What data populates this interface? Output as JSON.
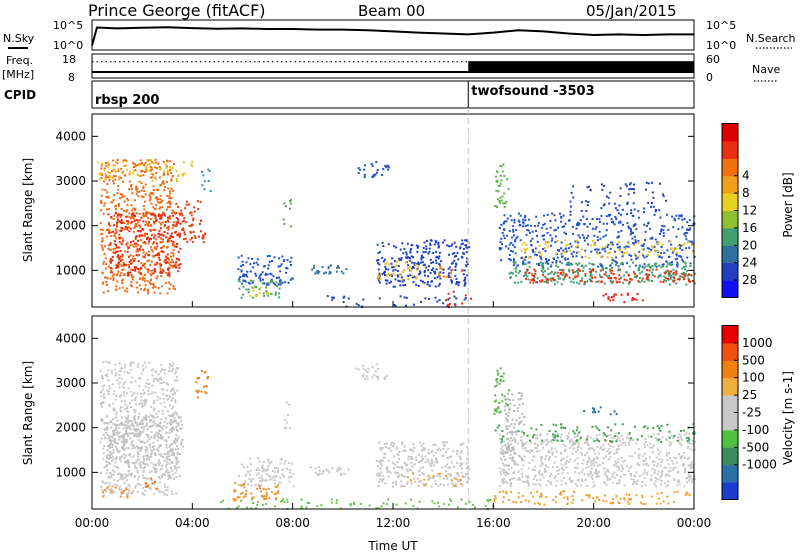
{
  "header": {
    "station": "Prince George (fitACF)",
    "beam": "Beam 00",
    "date": "05/Jan/2015"
  },
  "left_labels": {
    "nsky": "N.Sky",
    "freq": "Freq.",
    "freq_unit": "[MHz]",
    "cpid": "CPID"
  },
  "right_labels": {
    "nsearch": "N.Search",
    "nave": "Nave"
  },
  "chart_data": [
    {
      "type": "line",
      "name": "noise",
      "left_ticks": [
        "10^5",
        "10^0"
      ],
      "right_ticks": [
        "10^5",
        "10^0"
      ],
      "series": [
        {
          "name": "N.Sky",
          "x_hours": [
            0,
            0.2,
            1,
            2,
            3,
            4,
            5,
            6,
            7,
            8,
            9,
            10,
            11,
            12,
            13,
            14,
            15,
            16,
            17,
            18,
            19,
            20,
            21,
            22,
            23,
            24
          ],
          "y_frac": [
            0.15,
            0.75,
            0.72,
            0.74,
            0.76,
            0.73,
            0.71,
            0.72,
            0.7,
            0.7,
            0.68,
            0.68,
            0.66,
            0.62,
            0.58,
            0.55,
            0.52,
            0.58,
            0.66,
            0.62,
            0.55,
            0.5,
            0.52,
            0.5,
            0.52,
            0.52
          ]
        }
      ]
    },
    {
      "type": "line",
      "name": "frequency",
      "left_ticks": [
        "18",
        "8"
      ],
      "right_ticks": [
        "60",
        "0"
      ],
      "series": [
        {
          "name": "Freq.",
          "x_hours": [
            0,
            24
          ],
          "values": [
            10.5,
            10.5
          ]
        },
        {
          "name": "Nave",
          "x_hours": [
            0,
            15
          ],
          "values": [
            14.8,
            14.8
          ]
        }
      ],
      "nave_block_hours": [
        15,
        24
      ]
    },
    {
      "type": "table",
      "name": "cpid",
      "segments": [
        {
          "label": "rbsp 200",
          "start_hour": 0
        },
        {
          "label": "twofsound -3503",
          "start_hour": 15
        }
      ]
    },
    {
      "type": "heatmap",
      "name": "power",
      "ylabel": "Slant Range [km]",
      "yticks": [
        1000,
        2000,
        3000,
        4000
      ],
      "ylim": [
        180,
        4500
      ],
      "xlim": [
        0,
        24
      ],
      "colorbar_label": "Power [dB]",
      "colorbar_ticks": [
        "4",
        "8",
        "12",
        "16",
        "20",
        "24",
        "28"
      ],
      "colorbar_colors": [
        "#1010ee",
        "#2040c0",
        "#3070a0",
        "#40a070",
        "#90c030",
        "#e8d020",
        "#f0a018",
        "#f07010",
        "#e83010",
        "#dd0000"
      ],
      "patches": [
        {
          "x": [
            0.3,
            3.3
          ],
          "y": [
            500,
            3500
          ],
          "color": "#f06a14",
          "density": 0.55
        },
        {
          "x": [
            0.6,
            3.5
          ],
          "y": [
            900,
            2300
          ],
          "color": "#e82a10",
          "density": 0.5
        },
        {
          "x": [
            3.3,
            4.5
          ],
          "y": [
            1600,
            2600
          ],
          "color": "#e83c10",
          "density": 0.45
        },
        {
          "x": [
            0.2,
            4.0
          ],
          "y": [
            3000,
            3500
          ],
          "color": "#e8c020",
          "density": 0.3
        },
        {
          "x": [
            4.3,
            4.7
          ],
          "y": [
            2700,
            3300
          ],
          "color": "#3a8ad0",
          "density": 0.3
        },
        {
          "x": [
            5.8,
            8.0
          ],
          "y": [
            700,
            1350
          ],
          "color": "#2050c8",
          "density": 0.55
        },
        {
          "x": [
            5.7,
            7.5
          ],
          "y": [
            400,
            800
          ],
          "color": "#50a060",
          "density": 0.45
        },
        {
          "x": [
            6.2,
            7.0
          ],
          "y": [
            400,
            650
          ],
          "color": "#e8d020",
          "density": 0.35
        },
        {
          "x": [
            7.6,
            7.9
          ],
          "y": [
            2000,
            2600
          ],
          "color": "#60a050",
          "density": 0.4
        },
        {
          "x": [
            8.6,
            10.2
          ],
          "y": [
            950,
            1150
          ],
          "color": "#3070a0",
          "density": 0.6
        },
        {
          "x": [
            10.5,
            11.8
          ],
          "y": [
            3100,
            3450
          ],
          "color": "#2050c8",
          "density": 0.45
        },
        {
          "x": [
            11.3,
            15.0
          ],
          "y": [
            650,
            1700
          ],
          "color": "#2040c0",
          "density": 0.55
        },
        {
          "x": [
            11.3,
            13.0
          ],
          "y": [
            800,
            1250
          ],
          "color": "#e8c020",
          "density": 0.35
        },
        {
          "x": [
            13.8,
            14.8
          ],
          "y": [
            850,
            1150
          ],
          "color": "#f07010",
          "density": 0.3
        },
        {
          "x": [
            9.0,
            15.0
          ],
          "y": [
            200,
            450
          ],
          "color": "#2040c0",
          "density": 0.2
        },
        {
          "x": [
            14.0,
            15.2
          ],
          "y": [
            200,
            600
          ],
          "color": "#e83010",
          "density": 0.18
        },
        {
          "x": [
            16.0,
            16.6
          ],
          "y": [
            2400,
            3400
          ],
          "color": "#60b050",
          "density": 0.45
        },
        {
          "x": [
            16.2,
            24.0
          ],
          "y": [
            1100,
            2300
          ],
          "color": "#2050c8",
          "density": 0.4
        },
        {
          "x": [
            16.6,
            24.0
          ],
          "y": [
            700,
            1200
          ],
          "color": "#40a070",
          "density": 0.55
        },
        {
          "x": [
            17.2,
            24.0
          ],
          "y": [
            750,
            1050
          ],
          "color": "#e83010",
          "density": 0.5
        },
        {
          "x": [
            20.0,
            22.0
          ],
          "y": [
            300,
            500
          ],
          "color": "#e82010",
          "density": 0.4
        },
        {
          "x": [
            17.0,
            24.0
          ],
          "y": [
            1300,
            1700
          ],
          "color": "#e8c020",
          "density": 0.25
        },
        {
          "x": [
            19.0,
            23.0
          ],
          "y": [
            2300,
            3000
          ],
          "color": "#2040c0",
          "density": 0.2
        }
      ]
    },
    {
      "type": "heatmap",
      "name": "velocity",
      "ylabel": "Slant Range [km]",
      "yticks": [
        1000,
        2000,
        3000,
        4000
      ],
      "ylim": [
        180,
        4500
      ],
      "xlim": [
        0,
        24
      ],
      "xlabel": "Time UT",
      "xticks": [
        "00:00",
        "04:00",
        "08:00",
        "12:00",
        "16:00",
        "20:00",
        "00:00"
      ],
      "colorbar_label": "Velocity [m s-1]",
      "colorbar_ticks": [
        "1000",
        "500",
        "100",
        "25",
        "-25",
        "-100",
        "-500",
        "-1000"
      ],
      "colorbar_colors": [
        "#1a3ccc",
        "#2a70a8",
        "#3a8a60",
        "#50c040",
        "#c8c8c8",
        "#c8c8c8",
        "#f0b040",
        "#f08010",
        "#f05010",
        "#e80000"
      ],
      "patches": [
        {
          "x": [
            0.3,
            3.4
          ],
          "y": [
            500,
            3500
          ],
          "color": "#c8c8c8",
          "density": 0.55
        },
        {
          "x": [
            0.5,
            3.6
          ],
          "y": [
            900,
            2300
          ],
          "color": "#c0c0c0",
          "density": 0.6
        },
        {
          "x": [
            0.4,
            1.8
          ],
          "y": [
            450,
            700
          ],
          "color": "#f09030",
          "density": 0.35
        },
        {
          "x": [
            2.0,
            2.6
          ],
          "y": [
            600,
            900
          ],
          "color": "#f07010",
          "density": 0.35
        },
        {
          "x": [
            4.0,
            4.6
          ],
          "y": [
            2700,
            3300
          ],
          "color": "#e88018",
          "density": 0.4
        },
        {
          "x": [
            5.8,
            8.0
          ],
          "y": [
            700,
            1350
          ],
          "color": "#c8c8c8",
          "density": 0.55
        },
        {
          "x": [
            5.6,
            7.4
          ],
          "y": [
            350,
            800
          ],
          "color": "#f09030",
          "density": 0.5
        },
        {
          "x": [
            7.6,
            7.9
          ],
          "y": [
            2000,
            2600
          ],
          "color": "#c8c8c8",
          "density": 0.35
        },
        {
          "x": [
            8.6,
            10.2
          ],
          "y": [
            950,
            1150
          ],
          "color": "#c8c8c8",
          "density": 0.6
        },
        {
          "x": [
            10.5,
            11.8
          ],
          "y": [
            3100,
            3450
          ],
          "color": "#c8c8c8",
          "density": 0.45
        },
        {
          "x": [
            11.3,
            15.0
          ],
          "y": [
            700,
            1700
          ],
          "color": "#c4c4c4",
          "density": 0.6
        },
        {
          "x": [
            5.0,
            16.0
          ],
          "y": [
            200,
            420
          ],
          "color": "#70c050",
          "density": 0.25
        },
        {
          "x": [
            12.5,
            14.8
          ],
          "y": [
            700,
            1000
          ],
          "color": "#f0a030",
          "density": 0.2
        },
        {
          "x": [
            16.0,
            16.6
          ],
          "y": [
            2300,
            3400
          ],
          "color": "#60b050",
          "density": 0.45
        },
        {
          "x": [
            16.2,
            24.0
          ],
          "y": [
            700,
            1900
          ],
          "color": "#c8c8c8",
          "density": 0.6
        },
        {
          "x": [
            16.4,
            17.2
          ],
          "y": [
            1000,
            2800
          ],
          "color": "#b8b8b8",
          "density": 0.5
        },
        {
          "x": [
            16.0,
            24.0
          ],
          "y": [
            300,
            600
          ],
          "color": "#f0a030",
          "density": 0.35
        },
        {
          "x": [
            16.0,
            24.0
          ],
          "y": [
            1700,
            2100
          ],
          "color": "#40a050",
          "density": 0.25
        },
        {
          "x": [
            19.5,
            21.0
          ],
          "y": [
            2300,
            2500
          ],
          "color": "#2a70a8",
          "density": 0.3
        }
      ]
    }
  ]
}
